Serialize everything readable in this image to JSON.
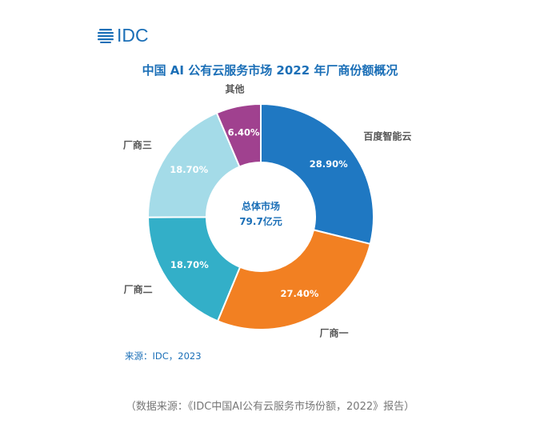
{
  "logo": {
    "text": "IDC"
  },
  "chart_data": {
    "type": "pie",
    "title": "中国 AI 公有云服务市场 2022 年厂商份额概况",
    "center_label": [
      "总体市场",
      "79.7亿元"
    ],
    "series": [
      {
        "name": "百度智能云",
        "value": 28.9,
        "label": "28.90%",
        "color": "#1f78c2"
      },
      {
        "name": "厂商一",
        "value": 27.4,
        "label": "27.40%",
        "color": "#f28022"
      },
      {
        "name": "厂商二",
        "value": 18.7,
        "label": "18.70%",
        "color": "#33afc8"
      },
      {
        "name": "厂商三",
        "value": 18.7,
        "label": "18.70%",
        "color": "#a4dbe8"
      },
      {
        "name": "其他",
        "value": 6.4,
        "label": "6.40%",
        "color": "#a0418f"
      }
    ]
  },
  "source": "来源：IDC，2023",
  "footnote": "（数据来源：《IDC中国AI公有云服务市场份额，2022》报告）"
}
